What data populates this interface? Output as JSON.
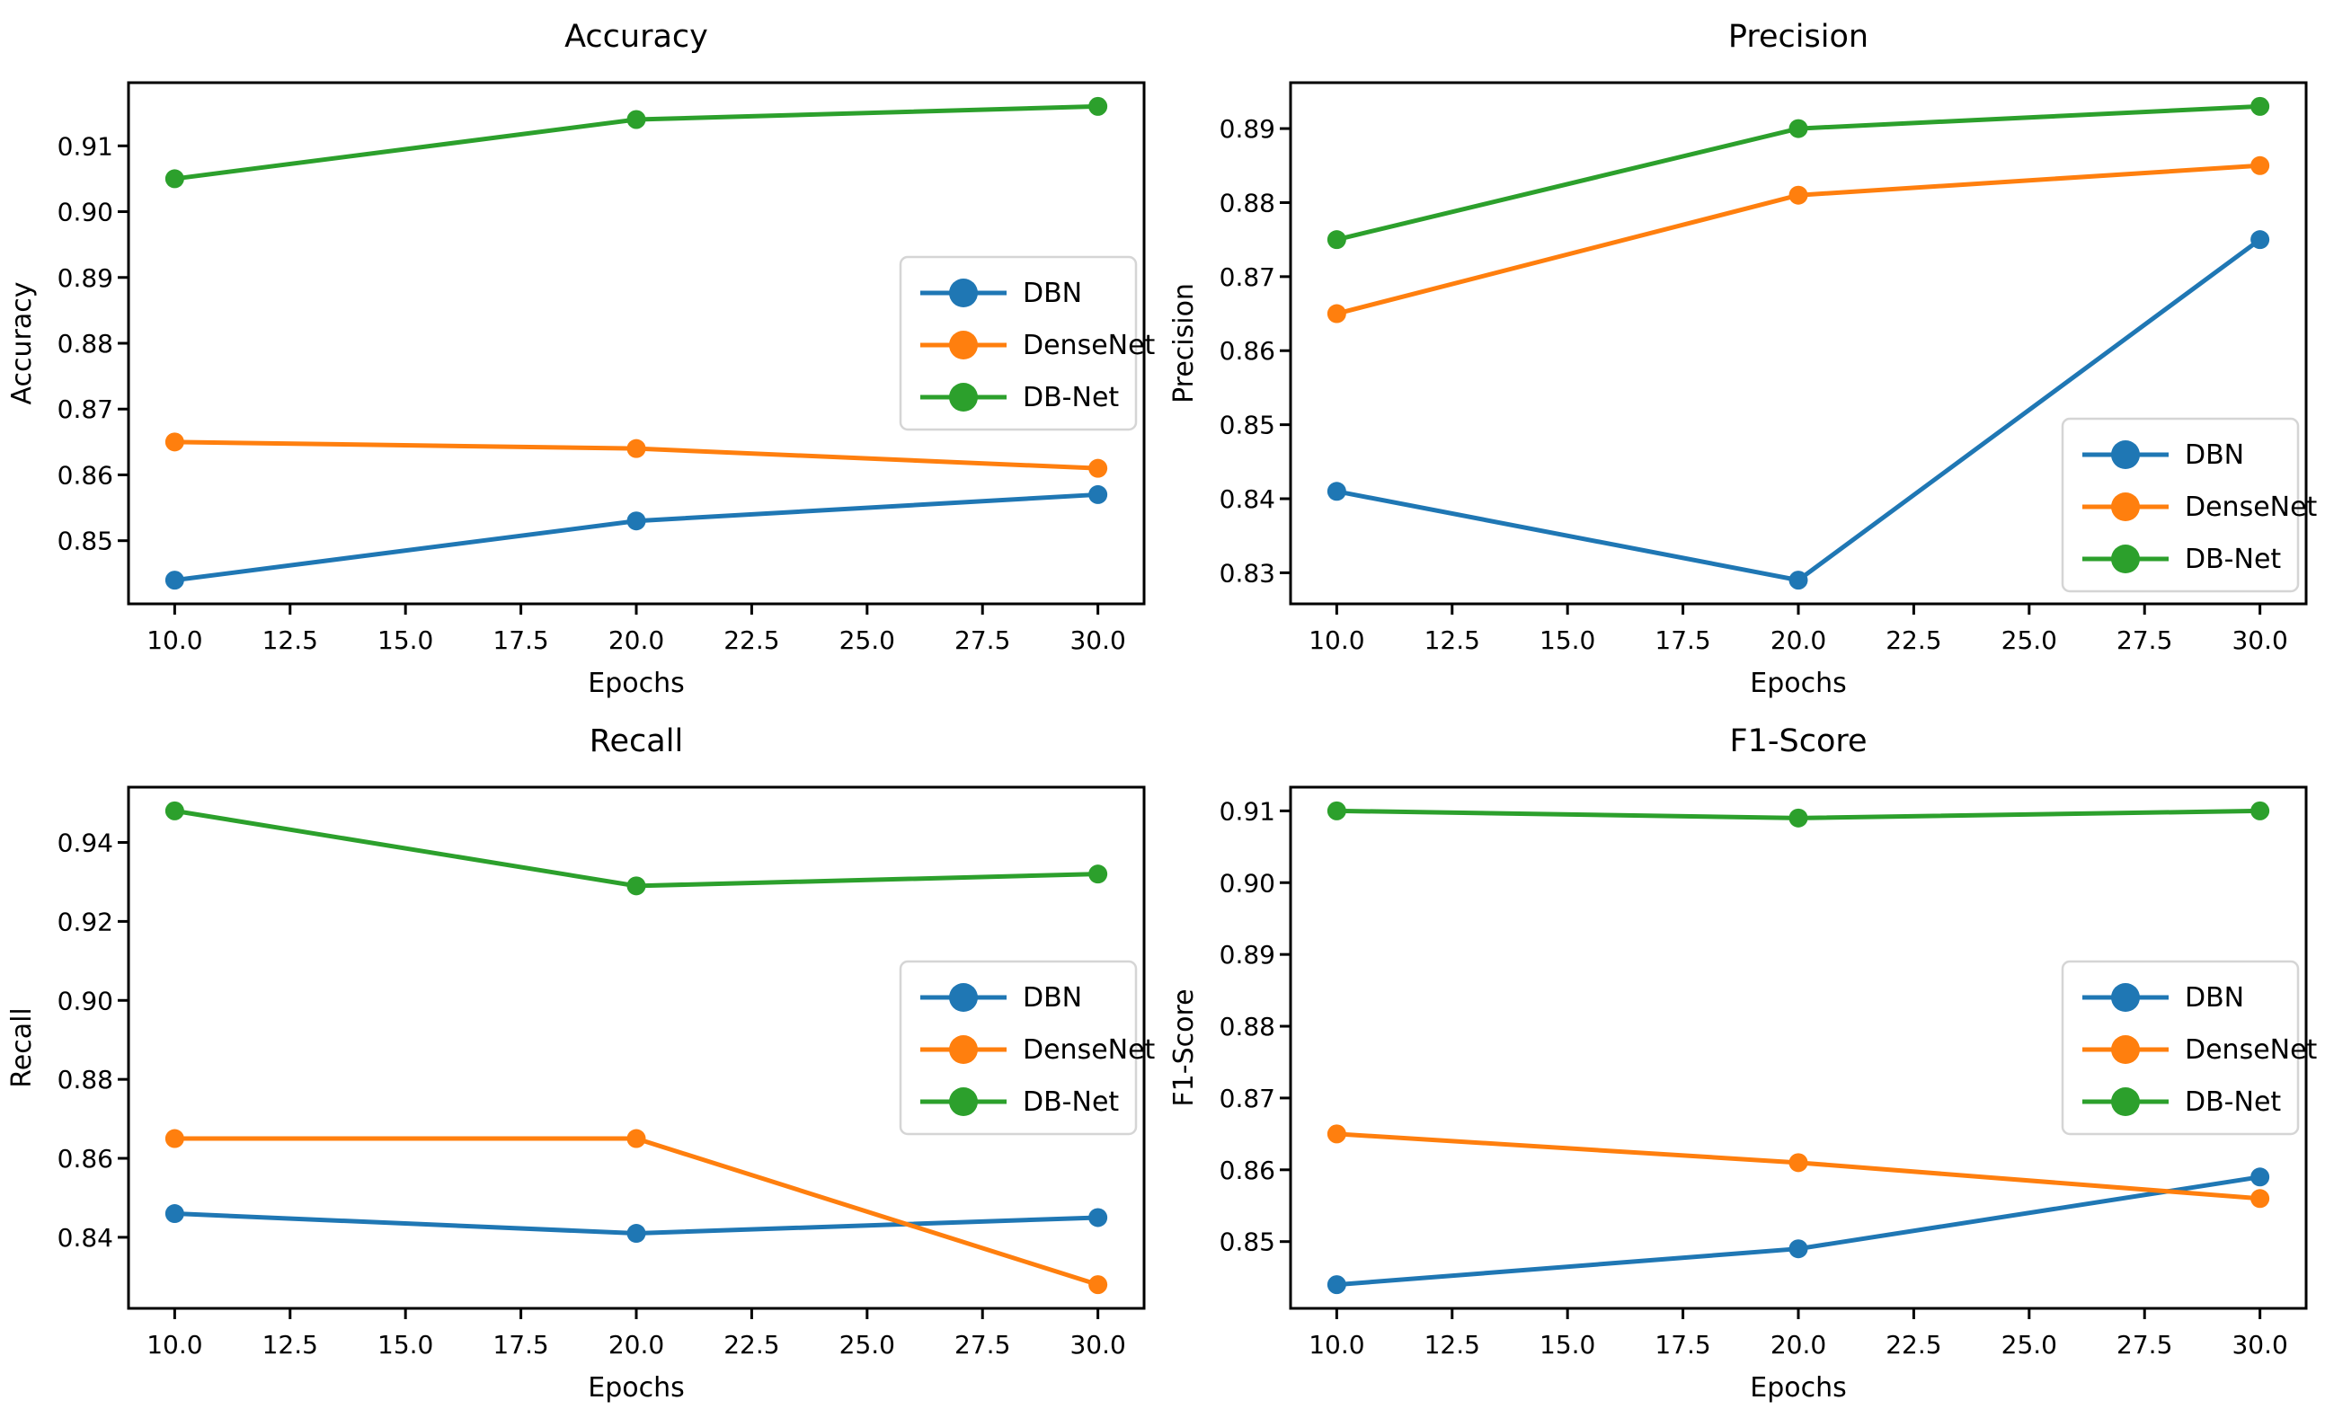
{
  "figure": {
    "background": "#ffffff",
    "text_color": "#000000",
    "spine_color": "#000000",
    "legend_border_color": "#d5d5d5",
    "legend_labels": [
      "DBN",
      "DenseNet",
      "DB-Net"
    ],
    "series_colors": {
      "DBN": "#1f77b4",
      "DenseNet": "#ff7f0e",
      "DB-Net": "#2ca02c"
    }
  },
  "chart_data": [
    {
      "type": "line",
      "title": "Accuracy",
      "xlabel": "Epochs",
      "ylabel": "Accuracy",
      "x": [
        10,
        20,
        30
      ],
      "xticks": [
        10.0,
        12.5,
        15.0,
        17.5,
        20.0,
        22.5,
        25.0,
        27.5,
        30.0
      ],
      "xlim": [
        9,
        31
      ],
      "yticks": [
        0.85,
        0.86,
        0.87,
        0.88,
        0.89,
        0.9,
        0.91
      ],
      "ylim": [
        0.8404,
        0.9196
      ],
      "grid": false,
      "legend_position": "center-right",
      "series": [
        {
          "name": "DBN",
          "color": "#1f77b4",
          "values": [
            0.844,
            0.853,
            0.857
          ]
        },
        {
          "name": "DenseNet",
          "color": "#ff7f0e",
          "values": [
            0.865,
            0.864,
            0.861
          ]
        },
        {
          "name": "DB-Net",
          "color": "#2ca02c",
          "values": [
            0.905,
            0.914,
            0.916
          ]
        }
      ]
    },
    {
      "type": "line",
      "title": "Precision",
      "xlabel": "Epochs",
      "ylabel": "Precision",
      "x": [
        10,
        20,
        30
      ],
      "xticks": [
        10.0,
        12.5,
        15.0,
        17.5,
        20.0,
        22.5,
        25.0,
        27.5,
        30.0
      ],
      "xlim": [
        9,
        31
      ],
      "yticks": [
        0.83,
        0.84,
        0.85,
        0.86,
        0.87,
        0.88,
        0.89
      ],
      "ylim": [
        0.8258,
        0.8962
      ],
      "grid": false,
      "legend_position": "lower-right",
      "series": [
        {
          "name": "DBN",
          "color": "#1f77b4",
          "values": [
            0.841,
            0.829,
            0.875
          ]
        },
        {
          "name": "DenseNet",
          "color": "#ff7f0e",
          "values": [
            0.865,
            0.881,
            0.885
          ]
        },
        {
          "name": "DB-Net",
          "color": "#2ca02c",
          "values": [
            0.875,
            0.89,
            0.893
          ]
        }
      ]
    },
    {
      "type": "line",
      "title": "Recall",
      "xlabel": "Epochs",
      "ylabel": "Recall",
      "x": [
        10,
        20,
        30
      ],
      "xticks": [
        10.0,
        12.5,
        15.0,
        17.5,
        20.0,
        22.5,
        25.0,
        27.5,
        30.0
      ],
      "xlim": [
        9,
        31
      ],
      "yticks": [
        0.84,
        0.86,
        0.88,
        0.9,
        0.92,
        0.94
      ],
      "ylim": [
        0.822,
        0.954
      ],
      "grid": false,
      "legend_position": "center-right",
      "series": [
        {
          "name": "DBN",
          "color": "#1f77b4",
          "values": [
            0.846,
            0.841,
            0.845
          ]
        },
        {
          "name": "DenseNet",
          "color": "#ff7f0e",
          "values": [
            0.865,
            0.865,
            0.828
          ]
        },
        {
          "name": "DB-Net",
          "color": "#2ca02c",
          "values": [
            0.948,
            0.929,
            0.932
          ]
        }
      ]
    },
    {
      "type": "line",
      "title": "F1-Score",
      "xlabel": "Epochs",
      "ylabel": "F1-Score",
      "x": [
        10,
        20,
        30
      ],
      "xticks": [
        10.0,
        12.5,
        15.0,
        17.5,
        20.0,
        22.5,
        25.0,
        27.5,
        30.0
      ],
      "xlim": [
        9,
        31
      ],
      "yticks": [
        0.85,
        0.86,
        0.87,
        0.88,
        0.89,
        0.9,
        0.91
      ],
      "ylim": [
        0.8407,
        0.9133
      ],
      "grid": false,
      "legend_position": "center-right",
      "series": [
        {
          "name": "DBN",
          "color": "#1f77b4",
          "values": [
            0.844,
            0.849,
            0.859
          ]
        },
        {
          "name": "DenseNet",
          "color": "#ff7f0e",
          "values": [
            0.865,
            0.861,
            0.856
          ]
        },
        {
          "name": "DB-Net",
          "color": "#2ca02c",
          "values": [
            0.91,
            0.909,
            0.91
          ]
        }
      ]
    }
  ]
}
